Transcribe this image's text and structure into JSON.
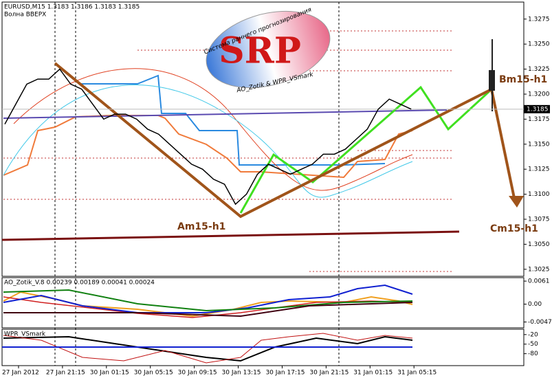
{
  "header": {
    "symbol": "EURUSD,M15  1.3183 1.3186 1.3183 1.3185",
    "signal": "Волна ВВЕРХ"
  },
  "logo": {
    "mark": "SRP",
    "slogan": "Система раннего прогнозирования",
    "authors": "AO_Zotik & WPR_VSmark"
  },
  "labels": {
    "a": "Am15-h1",
    "b": "Bm15-h1",
    "c": "Cm15-h1"
  },
  "chart_data": [
    {
      "type": "line",
      "xlim": [
        0,
        190
      ],
      "xticks": [
        {
          "value": 6,
          "label": "27 Jan 2012"
        },
        {
          "value": 22,
          "label": "27 Jan 21:15"
        },
        {
          "value": 38,
          "label": "30 Jan 01:15"
        },
        {
          "value": 54,
          "label": "30 Jan 05:15"
        },
        {
          "value": 70,
          "label": "30 Jan 09:15"
        },
        {
          "value": 86,
          "label": "30 Jan 13:15"
        },
        {
          "value": 102,
          "label": "30 Jan 17:15"
        },
        {
          "value": 118,
          "label": "30 Jan 21:15"
        },
        {
          "value": 134,
          "label": "31 Jan 01:15"
        },
        {
          "value": 150,
          "label": "31 Jan 05:15"
        }
      ],
      "ylim": [
        1.3018,
        1.3292
      ],
      "yticks": [
        1.3275,
        {
          "value": 1.325,
          "label": "1.3250"
        },
        1.3225,
        {
          "value": 1.32,
          "label": "1.3200"
        },
        1.3175,
        {
          "value": 1.315,
          "label": "1.3150"
        },
        1.3125,
        {
          "value": 1.31,
          "label": "1.3100"
        },
        1.3075,
        {
          "value": 1.305,
          "label": "1.3050"
        },
        1.3025
      ],
      "last_price": 1.3185,
      "x": [
        1,
        5,
        9,
        13,
        17,
        21,
        25,
        29,
        33,
        37,
        41,
        45,
        49,
        53,
        57,
        61,
        65,
        69,
        73,
        77,
        81,
        85,
        89,
        93,
        97,
        101,
        105,
        109,
        113,
        117,
        121,
        125,
        129,
        133,
        137,
        141,
        145,
        149
      ],
      "series": [
        {
          "color": "#000000",
          "values": [
            1.317,
            1.319,
            1.321,
            1.3215,
            1.3215,
            1.3225,
            1.321,
            1.3205,
            1.319,
            1.3175,
            1.318,
            1.318,
            1.3175,
            1.3165,
            1.316,
            1.315,
            1.314,
            1.313,
            1.3125,
            1.3115,
            1.311,
            1.309,
            1.31,
            1.312,
            1.313,
            1.3125,
            1.312,
            1.3125,
            1.313,
            1.314,
            1.314,
            1.3145,
            1.3155,
            1.3165,
            1.3185,
            1.3195,
            1.319,
            1.3185
          ]
        }
      ]
    },
    {
      "type": "indicator",
      "title": "AO_Zotik_V.8 0.00239 0.00189 0.00041 0.00024",
      "ylim": [
        -0.00628,
        0.00702
      ],
      "yticks": [
        0.0061,
        {
          "value": 0,
          "label": "0.00"
        },
        -0.00473
      ]
    },
    {
      "type": "indicator",
      "title": "WPR_VSmark",
      "ylim": [
        -117.5,
        -3.1
      ],
      "yticks": [
        -20,
        -50,
        -80
      ]
    }
  ]
}
